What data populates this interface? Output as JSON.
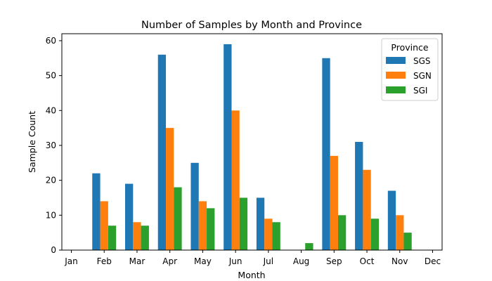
{
  "chart_data": {
    "type": "bar",
    "title": "Number of Samples by Month and Province",
    "xlabel": "Month",
    "ylabel": "Sample Count",
    "categories": [
      "Jan",
      "Feb",
      "Mar",
      "Apr",
      "May",
      "Jun",
      "Jul",
      "Aug",
      "Sep",
      "Oct",
      "Nov",
      "Dec"
    ],
    "series": [
      {
        "name": "SGS",
        "color": "#1f77b4",
        "values": [
          0,
          22,
          19,
          56,
          25,
          59,
          15,
          0,
          55,
          31,
          17,
          0
        ]
      },
      {
        "name": "SGN",
        "color": "#ff7f0e",
        "values": [
          0,
          14,
          8,
          35,
          14,
          40,
          9,
          0,
          27,
          23,
          10,
          0
        ]
      },
      {
        "name": "SGI",
        "color": "#2ca02c",
        "values": [
          0,
          7,
          7,
          18,
          12,
          15,
          8,
          2,
          10,
          9,
          5,
          0
        ]
      }
    ],
    "ylim": [
      0,
      62
    ],
    "yticks": [
      0,
      10,
      20,
      30,
      40,
      50,
      60
    ],
    "grid": false,
    "legend": {
      "title": "Province",
      "placement": "top-right"
    }
  }
}
